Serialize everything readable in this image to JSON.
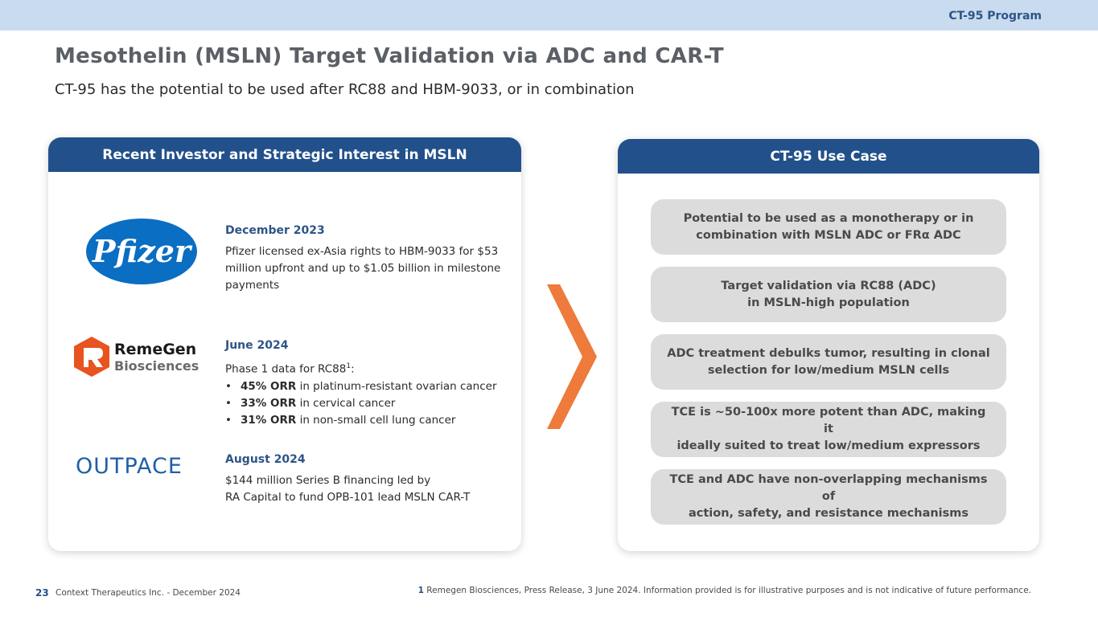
{
  "header": {
    "program": "CT-95 Program"
  },
  "title": "Mesothelin (MSLN) Target Validation via ADC and CAR-T",
  "subtitle": "CT-95 has the potential to be used after RC88 and HBM-9033, or in combination",
  "left_panel": {
    "heading": "Recent Investor and Strategic Interest in MSLN",
    "entries": [
      {
        "logo": "Pfizer",
        "date": "December 2023",
        "description": "Pfizer licensed ex-Asia rights to HBM-9033 for $53 million upfront and up to $1.05 billion in milestone payments"
      },
      {
        "logo_name": "RemeGen",
        "logo_sub": "Biosciences",
        "date": "June 2024",
        "intro": "Phase 1 data for RC88",
        "intro_sup": "1",
        "intro_suffix": ":",
        "bullets": [
          {
            "bold": "45% ORR",
            "text": " in platinum-resistant ovarian cancer"
          },
          {
            "bold": "33% ORR",
            "text": " in cervical cancer"
          },
          {
            "bold": "31% ORR",
            "text": " in non-small cell lung cancer"
          }
        ]
      },
      {
        "logo": "OUTPACE",
        "date": "August 2024",
        "line1": "$144 million Series B financing led by",
        "line2": "RA Capital to fund OPB-101 lead MSLN CAR-T"
      }
    ]
  },
  "right_panel": {
    "heading": "CT-95 Use Case",
    "items": [
      {
        "line1": "Potential to be used as a monotherapy or in",
        "line2": "combination with MSLN ADC or FRα ADC"
      },
      {
        "line1": "Target validation via RC88 (ADC)",
        "line2": "in MSLN-high population"
      },
      {
        "line1": "ADC treatment debulks tumor, resulting in clonal",
        "line2": "selection for low/medium MSLN cells"
      },
      {
        "line1": "TCE is ~50-100x more potent than ADC, making it",
        "line2": "ideally suited to treat low/medium expressors"
      },
      {
        "line1": "TCE and ADC have non-overlapping mechanisms of",
        "line2": "action, safety, and resistance mechanisms"
      }
    ]
  },
  "footer": {
    "page_number": "23",
    "company": "Context Therapeutics Inc. -  December 2024",
    "footnote_num": "1",
    "footnote_text": " Remegen Biosciences, Press Release, 3 June 2024. Information provided is for illustrative purposes and is not indicative of future performance."
  },
  "colors": {
    "brand_blue": "#22508a",
    "arrow_orange": "#ee7a3c",
    "pfizer_blue": "#0a6ec2",
    "remegen_orange": "#e8531f"
  }
}
